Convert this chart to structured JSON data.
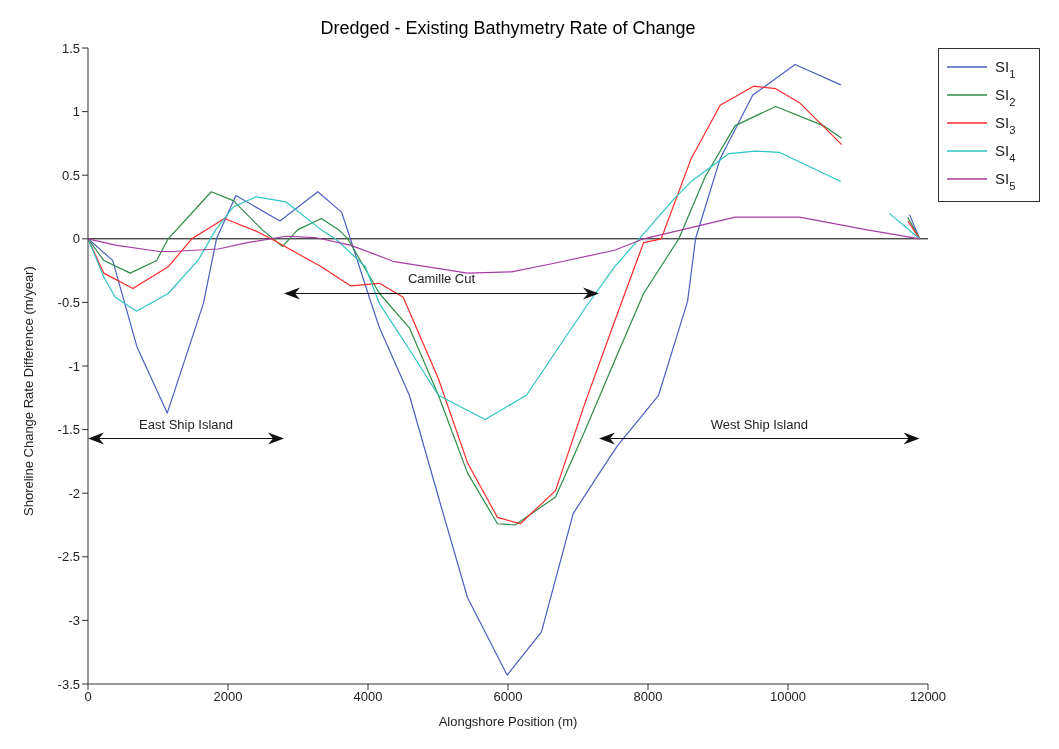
{
  "chart_data": {
    "type": "line",
    "title": "Dredged - Existing Bathymetry Rate of Change",
    "xlabel": "Alongshore Position (m)",
    "ylabel": "Shoreline Change Rate Difference (m/year)",
    "xlim": [
      0,
      12000
    ],
    "xticks": [
      0,
      2000,
      4000,
      6000,
      8000,
      10000,
      12000
    ],
    "ylim": [
      -3.5,
      1.5
    ],
    "yticks": [
      -3.5,
      -3,
      -2.5,
      -2,
      -1.5,
      -1,
      -0.5,
      0,
      0.5,
      1,
      1.5
    ],
    "grid": false,
    "legend": "top right",
    "marker": "none",
    "line_style": "solid",
    "ref_lines": [
      {
        "axis": "y",
        "value": 0,
        "color": "#000000"
      }
    ],
    "annotations": [
      "East Ship Island",
      "Camille Cut",
      "West Ship Island"
    ],
    "series": [
      {
        "name": "SI$_{1}$",
        "color": "#4a5fbf",
        "x": [
          0,
          352,
          700,
          1132,
          1648,
          1836,
          2113,
          2742,
          3283,
          3623,
          3748,
          4000,
          4164,
          4591,
          5006,
          5421,
          5987,
          6478,
          6931,
          7308,
          7560,
          8151,
          8566,
          8679,
          9031,
          9497,
          10101,
          10755,
          11300,
          11736,
          11880
        ],
        "values": [
          0,
          -0.17,
          -0.85,
          -1.37,
          -0.51,
          0,
          0.34,
          0.14,
          0.37,
          0.21,
          0,
          -0.43,
          -0.7,
          -1.23,
          -2.03,
          -2.82,
          -3.43,
          -3.09,
          -2.16,
          -1.84,
          -1.63,
          -1.23,
          -0.49,
          0,
          0.63,
          1.13,
          1.37,
          1.21,
          null,
          0.19,
          0
        ]
      },
      {
        "name": "SI$_{2}$",
        "color": "#2e8b47",
        "x": [
          0,
          226,
          604,
          981,
          1145,
          1761,
          2075,
          2491,
          2780,
          2994,
          3333,
          3585,
          3711,
          4164,
          4591,
          5006,
          5421,
          5849,
          6101,
          6679,
          7107,
          7522,
          7937,
          8440,
          8818,
          9245,
          9824,
          10503,
          10767,
          11300,
          11711,
          11880
        ],
        "values": [
          0,
          -0.17,
          -0.27,
          -0.17,
          0,
          0.37,
          0.3,
          0.07,
          -0.06,
          0.07,
          0.16,
          0.07,
          0,
          -0.43,
          -0.7,
          -1.23,
          -1.84,
          -2.24,
          -2.25,
          -2.03,
          -1.5,
          -0.96,
          -0.43,
          0,
          0.49,
          0.89,
          1.04,
          0.89,
          0.79,
          null,
          0.17,
          0
        ]
      },
      {
        "name": "SI$_{3}$",
        "color": "#ff2a2a",
        "x": [
          0,
          226,
          642,
          1145,
          1484,
          1950,
          2403,
          2616,
          3333,
          3748,
          4164,
          4503,
          5006,
          5421,
          5849,
          6176,
          6679,
          7107,
          7522,
          7937,
          8189,
          8616,
          9031,
          9509,
          9824,
          10164,
          10767,
          11300,
          11711,
          11880
        ],
        "values": [
          0,
          -0.27,
          -0.39,
          -0.22,
          0,
          0.16,
          0.06,
          0,
          -0.22,
          -0.37,
          -0.35,
          -0.46,
          -1.1,
          -1.76,
          -2.19,
          -2.24,
          -1.98,
          -1.28,
          -0.65,
          -0.03,
          0,
          0.63,
          1.05,
          1.2,
          1.18,
          1.07,
          0.74,
          null,
          0.14,
          0
        ]
      },
      {
        "name": "SI$_{4}$",
        "color": "#2ec4c4",
        "x": [
          0,
          226,
          390,
          692,
          1145,
          1572,
          1824,
          2075,
          2403,
          2830,
          3333,
          3535,
          3962,
          4164,
          4591,
          5006,
          5673,
          6264,
          6679,
          7107,
          7522,
          7874,
          8365,
          8616,
          9157,
          9535,
          9874,
          10755,
          11100,
          11447,
          11880
        ],
        "values": [
          0,
          -0.3,
          -0.46,
          -0.57,
          -0.43,
          -0.17,
          0.07,
          0.25,
          0.33,
          0.29,
          0.07,
          0,
          -0.22,
          -0.51,
          -0.87,
          -1.23,
          -1.42,
          -1.23,
          -0.89,
          -0.54,
          -0.22,
          0,
          0.31,
          0.45,
          0.67,
          0.69,
          0.68,
          0.45,
          null,
          0.2,
          0
        ]
      },
      {
        "name": "SI$_{5}$",
        "color": "#a63ca6",
        "x": [
          0,
          390,
          1019,
          1200,
          1862,
          2277,
          2830,
          3245,
          3748,
          4377,
          5421,
          6050,
          6679,
          7522,
          7937,
          8780,
          9245,
          10164,
          11132,
          11880
        ],
        "values": [
          0,
          -0.05,
          -0.1,
          -0.1,
          -0.08,
          -0.03,
          0.02,
          0.01,
          -0.05,
          -0.18,
          -0.27,
          -0.26,
          -0.19,
          -0.09,
          0,
          0.11,
          0.17,
          0.17,
          0.07,
          0
        ]
      }
    ]
  }
}
